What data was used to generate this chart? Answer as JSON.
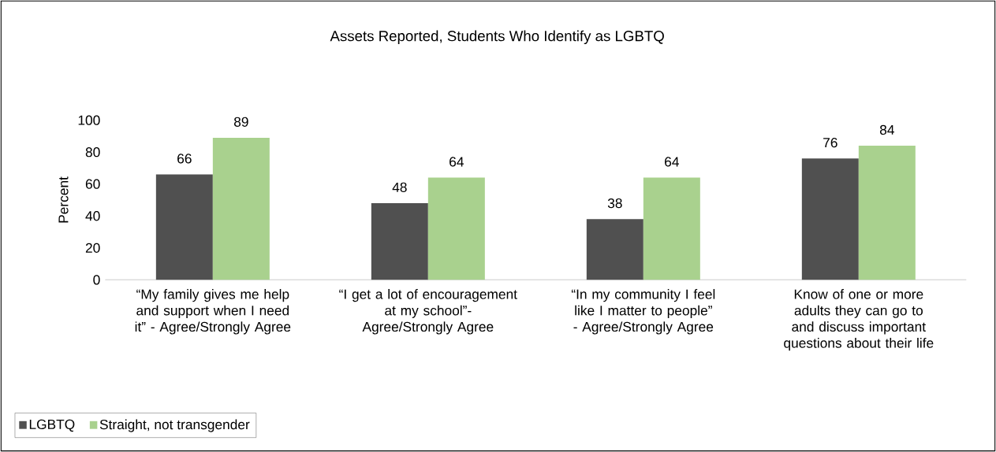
{
  "chart_data": {
    "type": "bar",
    "title": "Assets Reported, Students Who Identify as LGBTQ",
    "ylabel": "Percent",
    "categories": [
      "“My family gives me help and support when I need it” - Agree/Strongly Agree",
      "“I get a lot of encouragement at my school”- Agree/Strongly Agree",
      "“In my community I feel like I matter to people” - Agree/Strongly Agree",
      "Know of one or more adults they can go to and discuss important questions about their life"
    ],
    "series": [
      {
        "name": "LGBTQ",
        "color": "#505050",
        "values": [
          66,
          48,
          38,
          76
        ]
      },
      {
        "name": "Straight, not transgender",
        "color": "#a9d18e",
        "values": [
          89,
          64,
          64,
          84
        ]
      }
    ],
    "ylim": [
      0,
      100
    ],
    "yticks": [
      0,
      20,
      40,
      60,
      80,
      100
    ],
    "data_labels": true,
    "legend": "bottom left",
    "grid": false
  }
}
